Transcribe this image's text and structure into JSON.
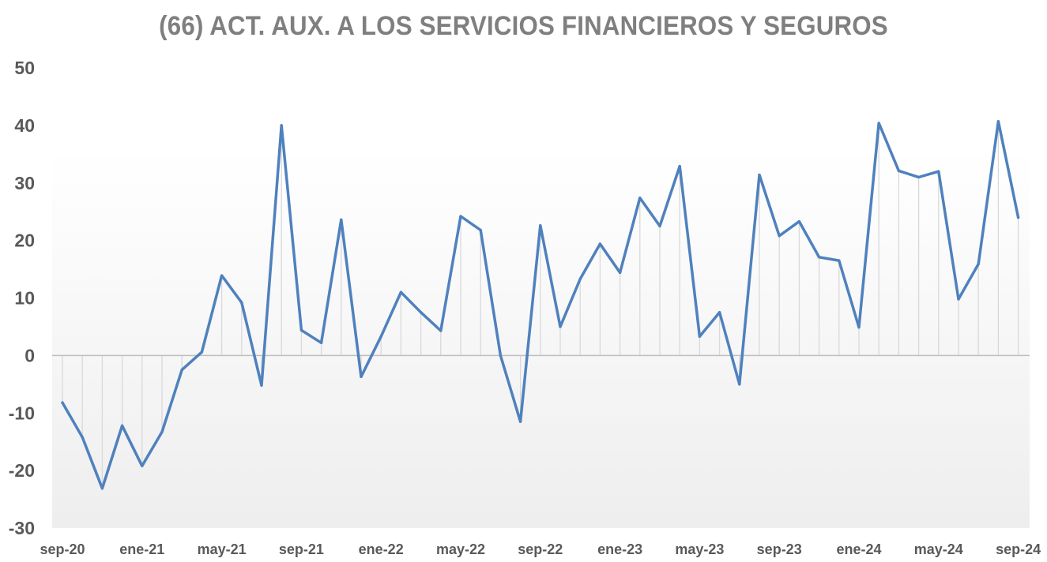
{
  "chart_data": {
    "type": "line",
    "title": "(66) ACT. AUX. A LOS SERVICIOS FINANCIEROS Y SEGUROS",
    "xlabel": "",
    "ylabel": "",
    "ylim": [
      -30,
      50
    ],
    "y_ticks": [
      50,
      40,
      30,
      20,
      10,
      0,
      -10,
      -20,
      -30
    ],
    "x_tick_labels": [
      "sep-20",
      "ene-21",
      "may-21",
      "sep-21",
      "ene-22",
      "may-22",
      "sep-22",
      "ene-23",
      "may-23",
      "sep-23",
      "ene-24",
      "may-24",
      "sep-24"
    ],
    "x": [
      "sep-20",
      "oct-20",
      "nov-20",
      "dic-20",
      "ene-21",
      "feb-21",
      "mar-21",
      "abr-21",
      "may-21",
      "jun-21",
      "jul-21",
      "ago-21",
      "sep-21",
      "oct-21",
      "nov-21",
      "dic-21",
      "ene-22",
      "feb-22",
      "mar-22",
      "abr-22",
      "may-22",
      "jun-22",
      "jul-22",
      "ago-22",
      "sep-22",
      "oct-22",
      "nov-22",
      "dic-22",
      "ene-23",
      "feb-23",
      "mar-23",
      "abr-23",
      "may-23",
      "jun-23",
      "jul-23",
      "ago-23",
      "sep-23",
      "oct-23",
      "nov-23",
      "dic-23",
      "ene-24",
      "feb-24",
      "mar-24",
      "abr-24",
      "may-24",
      "jun-24",
      "jul-24",
      "ago-24",
      "sep-24"
    ],
    "series": [
      {
        "values": [
          -8.2,
          -14.2,
          -23.1,
          -12.2,
          -19.2,
          -13.3,
          -2.5,
          0.6,
          13.9,
          9.2,
          -5.2,
          40.0,
          4.4,
          2.2,
          23.6,
          -3.7,
          3.3,
          11.0,
          7.5,
          4.3,
          24.2,
          21.8,
          0.0,
          -11.5,
          22.6,
          5.0,
          13.3,
          19.4,
          14.4,
          27.4,
          22.5,
          32.9,
          3.3,
          7.5,
          -5.0,
          31.4,
          20.8,
          23.3,
          17.1,
          16.5,
          4.9,
          40.4,
          32.1,
          31.0,
          32.0,
          9.8,
          15.9,
          40.7,
          24.0
        ]
      }
    ],
    "grid": "vertical drop lines",
    "legend": "none",
    "colors": {
      "line": "#4f81bd",
      "drop_lines": "#d9d9d9",
      "zero_line": "#bfbfbf",
      "tick_text": "#595959",
      "title_text": "#7f7f7f"
    }
  }
}
